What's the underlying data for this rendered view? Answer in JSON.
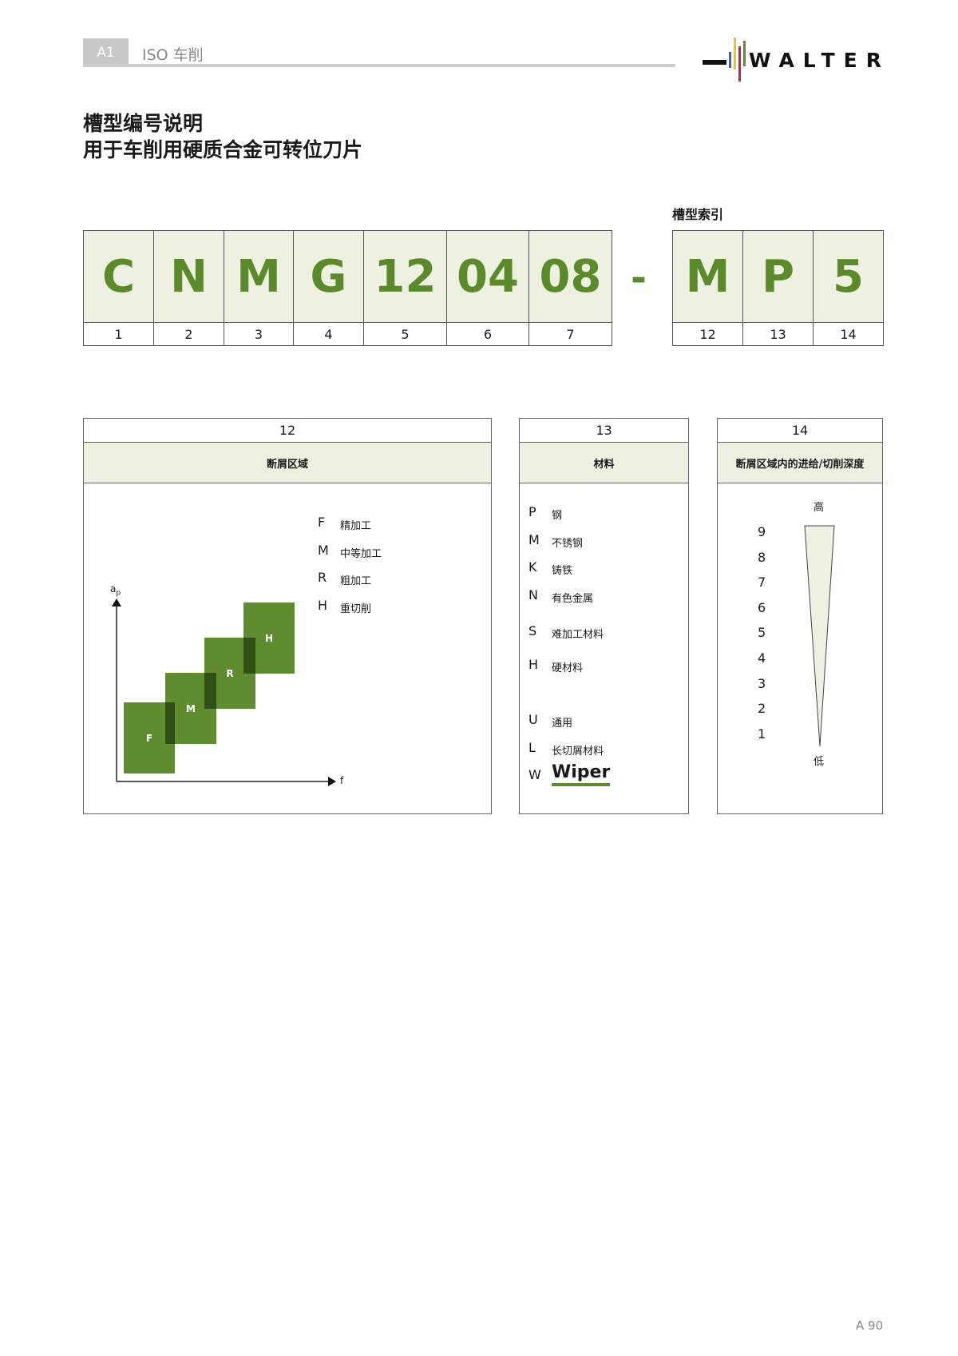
{
  "header": {
    "chapter": "A1",
    "section": "ISO 车削",
    "brand": "WALTER"
  },
  "title": {
    "line1": "槽型编号说明",
    "line2": "用于车削用硬质合金可转位刀片"
  },
  "code": {
    "index_label": "槽型索引",
    "dash": "-",
    "cells": [
      {
        "v": "C",
        "n": "1"
      },
      {
        "v": "N",
        "n": "2"
      },
      {
        "v": "M",
        "n": "3"
      },
      {
        "v": "G",
        "n": "4"
      },
      {
        "v": "12",
        "n": "5"
      },
      {
        "v": "04",
        "n": "6"
      },
      {
        "v": "08",
        "n": "7"
      }
    ],
    "index_cells": [
      {
        "v": "M",
        "n": "12"
      },
      {
        "v": "P",
        "n": "13"
      },
      {
        "v": "5",
        "n": "14"
      }
    ]
  },
  "panel12": {
    "num": "12",
    "title": "断屑区域",
    "legend": [
      {
        "k": "F",
        "t": "精加工"
      },
      {
        "k": "M",
        "t": "中等加工"
      },
      {
        "k": "R",
        "t": "粗加工"
      },
      {
        "k": "H",
        "t": "重切削"
      }
    ],
    "y_axis": "a",
    "y_sub": "p",
    "x_axis": "f",
    "boxes": [
      "F",
      "M",
      "R",
      "H"
    ]
  },
  "panel13": {
    "num": "13",
    "title": "材料",
    "items": [
      {
        "k": "P",
        "t": "钢"
      },
      {
        "k": "M",
        "t": "不锈钢"
      },
      {
        "k": "K",
        "t": "铸铁"
      },
      {
        "k": "N",
        "t": "有色金属"
      },
      {
        "k": "S",
        "t": "难加工材料"
      },
      {
        "k": "H",
        "t": "硬材料"
      },
      {
        "k": "U",
        "t": "通用"
      },
      {
        "k": "L",
        "t": "长切屑材料"
      },
      {
        "k": "W",
        "t": "Wiper"
      }
    ]
  },
  "panel14": {
    "num": "14",
    "title": "断屑区域内的进给/切削深度",
    "high": "高",
    "low": "低",
    "levels": [
      "9",
      "8",
      "7",
      "6",
      "5",
      "4",
      "3",
      "2",
      "1"
    ]
  },
  "footer": {
    "page": "A 90"
  },
  "colors": {
    "accent": "#5e8c2f",
    "fill": "#eef0e2"
  }
}
